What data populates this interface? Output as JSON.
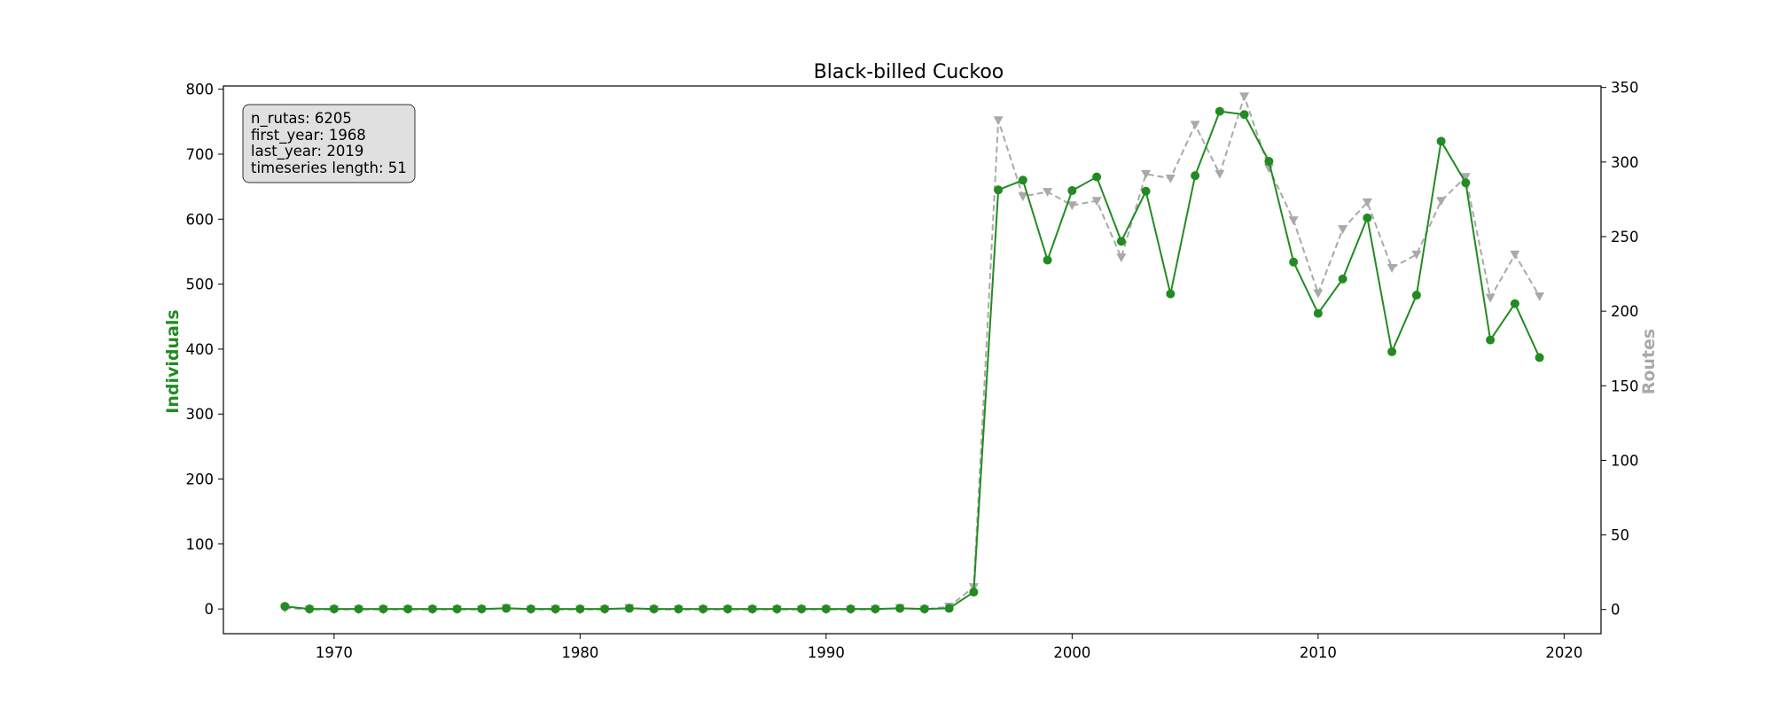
{
  "chart_data": {
    "type": "line",
    "title": "Black-billed Cuckoo",
    "xlabel": "",
    "ylabel_left": "Individuals",
    "ylabel_right": "Routes",
    "xlim": [
      1965.5,
      2021.5
    ],
    "ylim_left": [
      -38,
      805
    ],
    "ylim_right": [
      -16.2,
      351
    ],
    "x_ticks": [
      1970,
      1980,
      1990,
      2000,
      2010,
      2020
    ],
    "y_ticks_left": [
      0,
      100,
      200,
      300,
      400,
      500,
      600,
      700,
      800
    ],
    "y_ticks_right": [
      0,
      50,
      100,
      150,
      200,
      250,
      300,
      350
    ],
    "grid": false,
    "legend": "none",
    "colors": {
      "individuals": "#228b22",
      "routes": "#a9a9a9"
    },
    "x": [
      1968,
      1969,
      1970,
      1971,
      1972,
      1973,
      1974,
      1975,
      1976,
      1977,
      1978,
      1979,
      1980,
      1981,
      1982,
      1983,
      1984,
      1985,
      1986,
      1987,
      1988,
      1989,
      1990,
      1991,
      1992,
      1993,
      1994,
      1995,
      1996,
      1997,
      1998,
      1999,
      2000,
      2001,
      2002,
      2003,
      2004,
      2005,
      2006,
      2007,
      2008,
      2009,
      2010,
      2011,
      2012,
      2013,
      2014,
      2015,
      2016,
      2017,
      2018,
      2019
    ],
    "series": [
      {
        "axis": "left",
        "values": [
          4,
          0,
          0,
          0,
          0,
          0,
          0,
          0,
          0,
          1,
          0,
          0,
          0,
          0,
          1,
          0,
          0,
          0,
          0,
          0,
          0,
          0,
          0,
          0,
          0,
          1,
          0,
          1,
          26,
          645,
          660,
          537,
          644,
          665,
          566,
          643,
          485,
          667,
          766,
          761,
          689,
          534,
          455,
          508,
          602,
          396,
          483,
          720,
          656,
          414,
          470,
          387
        ]
      },
      {
        "axis": "right",
        "values": [
          1,
          0,
          0,
          0,
          0,
          0,
          0,
          0,
          0,
          1,
          0,
          0,
          0,
          0,
          1,
          0,
          0,
          0,
          0,
          0,
          0,
          0,
          0,
          0,
          0,
          1,
          0,
          2,
          15,
          328,
          277,
          280,
          271,
          274,
          236,
          292,
          289,
          325,
          292,
          344,
          296,
          261,
          212,
          255,
          273,
          229,
          238,
          274,
          290,
          209,
          238,
          210
        ]
      }
    ]
  },
  "info_box": {
    "lines": [
      "n_rutas: 6205",
      "first_year: 1968",
      "last_year: 2019",
      "timeseries length: 51"
    ]
  }
}
